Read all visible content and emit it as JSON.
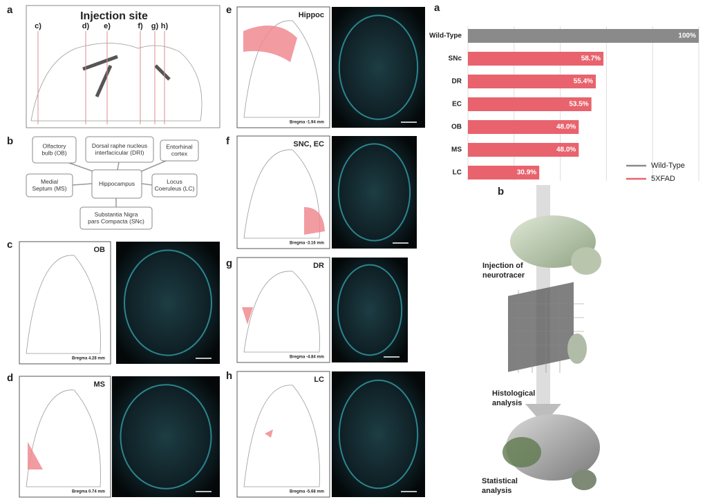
{
  "panel_a": {
    "label": "a",
    "title": "Injection site",
    "markers": [
      "c)",
      "d)",
      "e)",
      "f)",
      "g)",
      "h)"
    ]
  },
  "panel_b": {
    "label": "b",
    "boxes": [
      [
        "Olfactory",
        "bulb (OB)"
      ],
      [
        "Dorsal raphe nucleus",
        "interfacicular (DRI)"
      ],
      [
        "Entorhinal",
        "cortex"
      ],
      [
        "Medial",
        "Septum (MS)"
      ],
      [
        "Hippocampus"
      ],
      [
        "Locus",
        "Coeruleus (LC)"
      ],
      [
        "Substantia Nigra",
        "pars Compacta (SNc)"
      ]
    ]
  },
  "sections": [
    {
      "label": "c",
      "region": "OB",
      "bregma": "Bregma 4.28 mm"
    },
    {
      "label": "d",
      "region": "MS",
      "bregma": "Bregma 0.74 mm"
    },
    {
      "label": "e",
      "region": "Hippoc",
      "bregma": "Bregma -1.94 mm"
    },
    {
      "label": "f",
      "region": "SNC, EC",
      "bregma": "Bregma -3.16 mm"
    },
    {
      "label": "g",
      "region": "DR",
      "bregma": "Bregma -4.84 mm"
    },
    {
      "label": "h",
      "region": "LC",
      "bregma": "Bregma -5.68 mm"
    }
  ],
  "chart_label": "a",
  "chart_data": {
    "type": "hbar",
    "categories": [
      "Wild-Type",
      "SNc",
      "DR",
      "EC",
      "OB",
      "MS",
      "LC"
    ],
    "series": [
      {
        "name": "Wild-Type",
        "color": "#8a8a8a",
        "values": [
          100,
          null,
          null,
          null,
          null,
          null,
          null
        ],
        "value_labels": [
          "100%",
          null,
          null,
          null,
          null,
          null,
          null
        ]
      },
      {
        "name": "5XFAD",
        "color": "#e8636d",
        "values": [
          null,
          58.7,
          55.4,
          53.5,
          48.0,
          48.0,
          30.9
        ],
        "value_labels": [
          null,
          "58.7%",
          "55.4%",
          "53.5%",
          "48.0%",
          "48.0%",
          "30.9%"
        ]
      }
    ],
    "xlim": [
      0,
      100
    ],
    "xticks": [
      0,
      20,
      40,
      60,
      80,
      100
    ],
    "grid": true
  },
  "panel_b_right": {
    "label": "b",
    "steps": [
      [
        "Injection of",
        "neurotracer"
      ],
      [
        "Histological",
        "analysis"
      ],
      [
        "Statistical",
        "analysis"
      ]
    ]
  }
}
